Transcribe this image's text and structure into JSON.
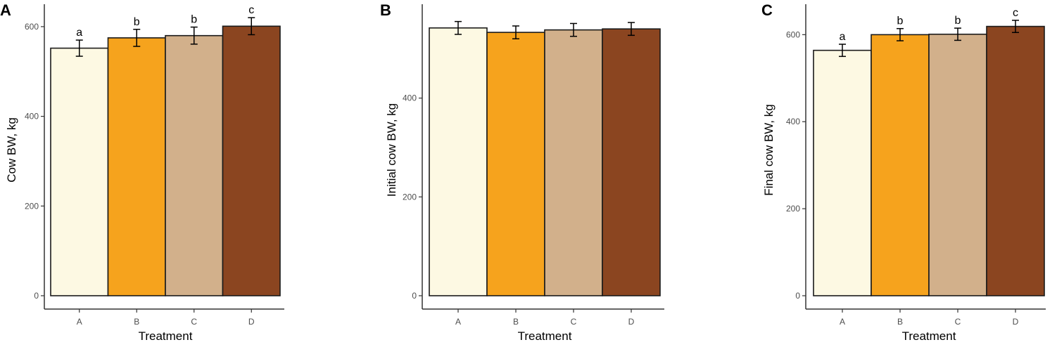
{
  "colors": {
    "A": "#fdf9e3",
    "B": "#f6a31d",
    "C": "#d2b08b",
    "D": "#8b4520",
    "bar_outline": "#1a1a1a",
    "axis": "#333333"
  },
  "chart_data": [
    {
      "type": "bar",
      "panel_label": "A",
      "categories": [
        "A",
        "B",
        "C",
        "D"
      ],
      "values": [
        552,
        575,
        580,
        601
      ],
      "errors": [
        18,
        19,
        19,
        19
      ],
      "significance": [
        "a",
        "b",
        "b",
        "c"
      ],
      "xlabel": "Treatment",
      "ylabel": "Cow BW, kg",
      "ylim": [
        0,
        650
      ],
      "yticks": [
        0,
        200,
        400,
        600
      ],
      "grid": false,
      "legend": "none"
    },
    {
      "type": "bar",
      "panel_label": "B",
      "categories": [
        "A",
        "B",
        "C",
        "D"
      ],
      "values": [
        542,
        533,
        538,
        540
      ],
      "errors": [
        13,
        13,
        13,
        13
      ],
      "significance": [
        "",
        "",
        "",
        ""
      ],
      "xlabel": "Treatment",
      "ylabel": "Initial cow BW, kg",
      "ylim": [
        0,
        590
      ],
      "yticks": [
        0,
        200,
        400
      ],
      "grid": false,
      "legend": "none"
    },
    {
      "type": "bar",
      "panel_label": "C",
      "categories": [
        "A",
        "B",
        "C",
        "D"
      ],
      "values": [
        564,
        600,
        601,
        619
      ],
      "errors": [
        14,
        14,
        14,
        14
      ],
      "significance": [
        "a",
        "b",
        "b",
        "c"
      ],
      "xlabel": "Treatment",
      "ylabel": "Final cow BW, kg",
      "ylim": [
        0,
        670
      ],
      "yticks": [
        0,
        200,
        400,
        600
      ],
      "grid": false,
      "legend": "none"
    }
  ]
}
